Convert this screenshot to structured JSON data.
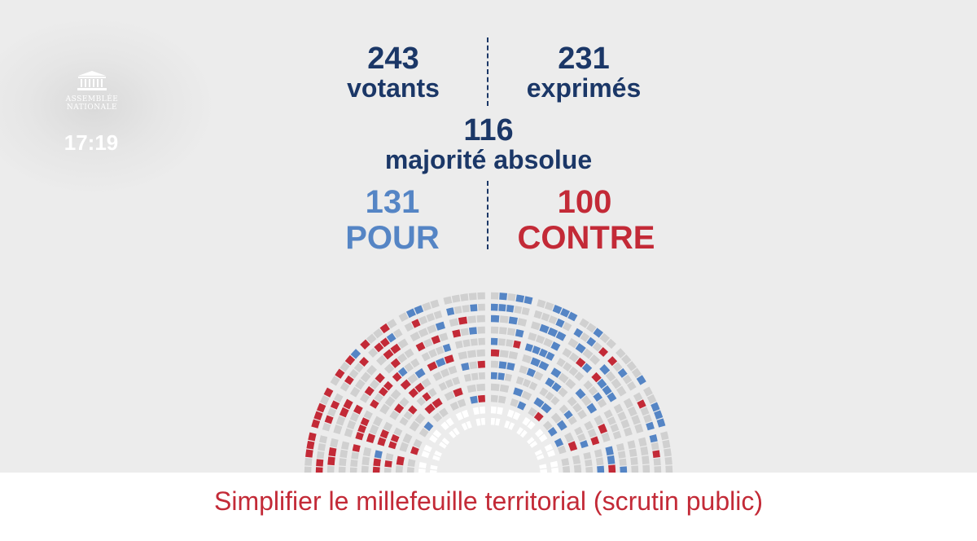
{
  "logo": {
    "line1": "ASSEMBLÉE",
    "line2": "NATIONALE"
  },
  "clock": "17:19",
  "stats": {
    "votants": {
      "value": "243",
      "label": "votants"
    },
    "exprimes": {
      "value": "231",
      "label": "exprimés"
    },
    "majorite": {
      "value": "116",
      "label": "majorité absolue"
    },
    "pour": {
      "value": "131",
      "label": "POUR"
    },
    "contre": {
      "value": "100",
      "label": "CONTRE"
    }
  },
  "title": "Simplifier le millefeuille territorial (scrutin public)",
  "colors": {
    "navy": "#1b3767",
    "pour": "#5585c5",
    "contre": "#c32a37",
    "seat": "#d0d0d0",
    "seat_light": "#ffffff",
    "background": "#ececec"
  }
}
